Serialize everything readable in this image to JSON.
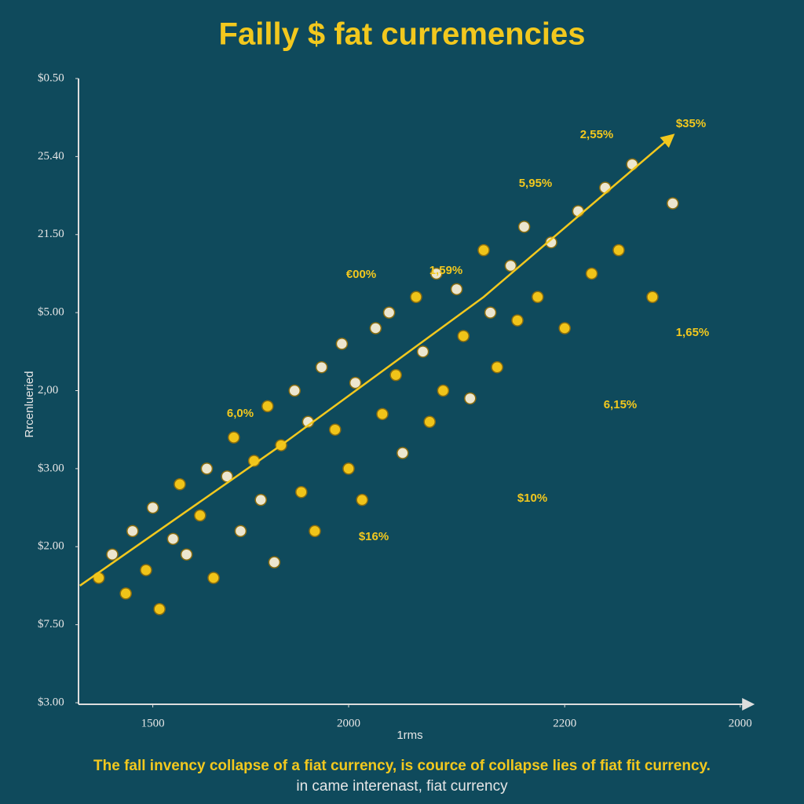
{
  "chart_data": {
    "type": "scatter",
    "title": "Failly $ fat curremencies",
    "xlabel": "1rms",
    "ylabel": "Rrcenlueried",
    "footer": [
      "The fall invency collapse of a fiat currency, is cource of collapse lies of fiat fit currency.",
      "in came interenast, fiat currency"
    ],
    "xlim": [
      0,
      100
    ],
    "ylim": [
      0,
      8
    ],
    "xticks": [
      {
        "value": 11,
        "label": "1500"
      },
      {
        "value": 40,
        "label": "2000"
      },
      {
        "value": 72,
        "label": "2200"
      },
      {
        "value": 98,
        "label": "2000"
      }
    ],
    "yticks": [
      {
        "value": 8,
        "label": "$0.50"
      },
      {
        "value": 7,
        "label": "25.40"
      },
      {
        "value": 6,
        "label": "21.50"
      },
      {
        "value": 5,
        "label": "$5.00"
      },
      {
        "value": 4,
        "label": "2,00"
      },
      {
        "value": 3,
        "label": "$3.00"
      },
      {
        "value": 2,
        "label": "$2.00"
      },
      {
        "value": 1,
        "label": "$7.50"
      },
      {
        "value": 0,
        "label": "$3.00"
      }
    ],
    "colors": [
      "#f0c419",
      "#ece6cf"
    ],
    "x": [
      3,
      5,
      7,
      8,
      10,
      11,
      12,
      14,
      15,
      16,
      18,
      19,
      20,
      22,
      23,
      24,
      26,
      27,
      28,
      29,
      30,
      32,
      33,
      34,
      35,
      36,
      38,
      39,
      40,
      41,
      42,
      44,
      45,
      46,
      47,
      48,
      50,
      51,
      52,
      53,
      54,
      56,
      57,
      58,
      60,
      61,
      62,
      64,
      65,
      66,
      68,
      70,
      72,
      74,
      76,
      78,
      80,
      82,
      85,
      88
    ],
    "y": [
      1.6,
      1.9,
      1.4,
      2.2,
      1.7,
      2.5,
      1.2,
      2.1,
      2.8,
      1.9,
      2.4,
      3.0,
      1.6,
      2.9,
      3.4,
      2.2,
      3.1,
      2.6,
      3.8,
      1.8,
      3.3,
      4.0,
      2.7,
      3.6,
      2.2,
      4.3,
      3.5,
      4.6,
      3.0,
      4.1,
      2.6,
      4.8,
      3.7,
      5.0,
      4.2,
      3.2,
      5.2,
      4.5,
      3.6,
      5.5,
      4.0,
      5.3,
      4.7,
      3.9,
      5.8,
      5.0,
      4.3,
      5.6,
      4.9,
      6.1,
      5.2,
      5.9,
      4.8,
      6.3,
      5.5,
      6.6,
      5.8,
      6.9,
      5.2,
      6.4
    ],
    "trend": {
      "color": "#f2c81e",
      "x": [
        0.2,
        30,
        60,
        88
      ],
      "y": [
        1.5,
        3.3,
        5.2,
        7.27
      ]
    },
    "annotations": [
      "$35%",
      "2,55%",
      "5,95%",
      "€00%",
      "1,59%",
      "1,65%",
      "6,0%",
      "6,15%",
      "$10%",
      "$16%"
    ]
  }
}
